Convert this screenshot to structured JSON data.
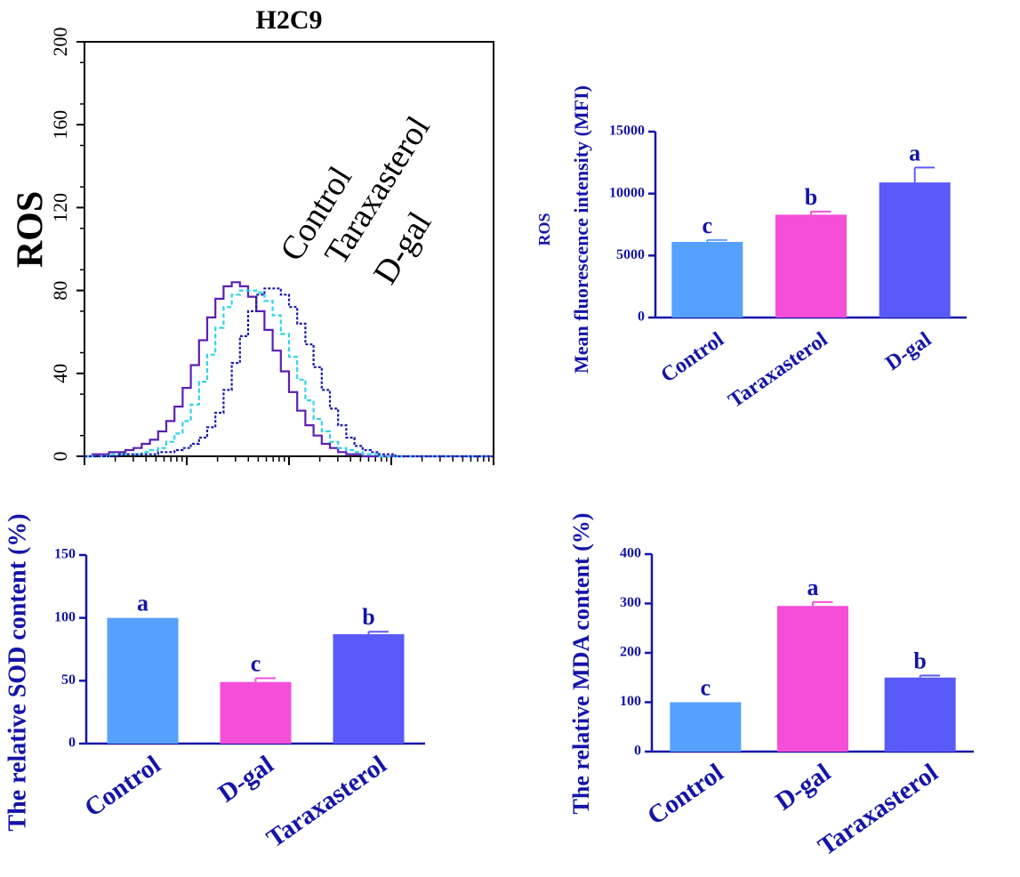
{
  "chart_data": [
    {
      "id": "histogram",
      "type": "line",
      "title": "H2C9",
      "ylabel": "ROS",
      "ylim": [
        0,
        200
      ],
      "yticks": [
        0,
        40,
        80,
        120,
        160,
        200
      ],
      "series": [
        {
          "name": "Control",
          "color": "#5a1fb4",
          "dash": "",
          "y": [
            0,
            1,
            1,
            2,
            2,
            3,
            4,
            6,
            8,
            12,
            17,
            24,
            33,
            44,
            56,
            67,
            76,
            82,
            84,
            82,
            77,
            70,
            61,
            51,
            41,
            31,
            22,
            15,
            10,
            6,
            4,
            2,
            1,
            1,
            0,
            0,
            0,
            0,
            0,
            0,
            0,
            0,
            0,
            0,
            0,
            0,
            0,
            0,
            0,
            0,
            0
          ]
        },
        {
          "name": "Taraxasterol",
          "color": "#2fd3e6",
          "dash": "5,3",
          "y": [
            0,
            0,
            0,
            1,
            1,
            1,
            1,
            2,
            3,
            4,
            7,
            11,
            17,
            25,
            36,
            49,
            62,
            72,
            78,
            80,
            80,
            79,
            75,
            68,
            59,
            48,
            37,
            27,
            18,
            12,
            7,
            4,
            3,
            2,
            1,
            1,
            0,
            0,
            0,
            0,
            0,
            0,
            0,
            0,
            0,
            0,
            0,
            0,
            0,
            0,
            0
          ]
        },
        {
          "name": "D-gal",
          "color": "#1a1ab0",
          "dash": "3,2",
          "y": [
            0,
            0,
            0,
            0,
            1,
            1,
            1,
            1,
            1,
            2,
            2,
            3,
            4,
            6,
            9,
            14,
            21,
            32,
            45,
            58,
            70,
            78,
            81,
            81,
            78,
            72,
            64,
            54,
            43,
            32,
            23,
            15,
            9,
            5,
            3,
            2,
            1,
            1,
            0,
            0,
            0,
            0,
            0,
            0,
            0,
            0,
            0,
            0,
            0,
            0,
            0
          ]
        }
      ]
    },
    {
      "id": "ros-mfi",
      "type": "bar",
      "ylabel": "ROS",
      "ylabel2": "Mean fluorescence intensity (MFI)",
      "ylim": [
        0,
        15000
      ],
      "yticks": [
        0,
        5000,
        10000,
        15000
      ],
      "categories": [
        "Control",
        "Taraxasterol",
        "D-gal"
      ],
      "values": [
        6100,
        8300,
        10900
      ],
      "errors": [
        150,
        250,
        1200
      ],
      "letters": [
        "c",
        "b",
        "a"
      ],
      "colors": [
        "#56a0ff",
        "#f54ed8",
        "#5a5af8"
      ]
    },
    {
      "id": "sod",
      "type": "bar",
      "ylabel": "The relative SOD content (%)",
      "ylim": [
        0,
        150
      ],
      "yticks": [
        0,
        50,
        100,
        150
      ],
      "categories": [
        "Control",
        "D-gal",
        "Taraxasterol"
      ],
      "values": [
        100,
        49,
        87
      ],
      "errors": [
        0,
        3,
        2
      ],
      "letters": [
        "a",
        "c",
        "b"
      ],
      "colors": [
        "#56a0ff",
        "#f54ed8",
        "#5a5af8"
      ]
    },
    {
      "id": "mda",
      "type": "bar",
      "ylabel": "The relative MDA content (%)",
      "ylim": [
        0,
        400
      ],
      "yticks": [
        0,
        100,
        200,
        300,
        400
      ],
      "categories": [
        "Control",
        "D-gal",
        "Taraxasterol"
      ],
      "values": [
        100,
        295,
        150
      ],
      "errors": [
        0,
        8,
        4
      ],
      "letters": [
        "c",
        "a",
        "b"
      ],
      "colors": [
        "#56a0ff",
        "#f54ed8",
        "#5a5af8"
      ]
    }
  ]
}
